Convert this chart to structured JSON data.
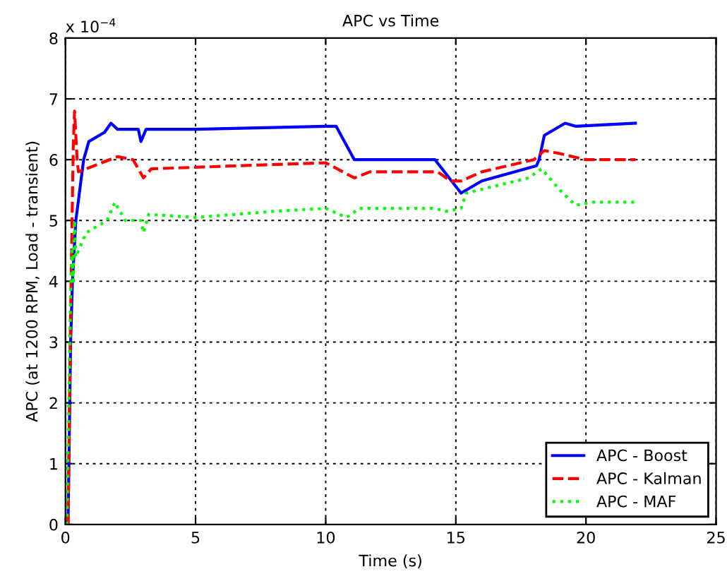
{
  "chart_data": {
    "type": "line",
    "title": "APC vs Time",
    "xlabel": "Time (s)",
    "ylabel": "APC (at 1200 RPM, Load - transient)",
    "annotations": [
      "x 10$^{−4}$"
    ],
    "xlim": [
      0,
      25
    ],
    "ylim": [
      0,
      8
    ],
    "xticks": [
      0,
      5,
      10,
      15,
      20,
      25
    ],
    "yticks": [
      0,
      1,
      2,
      3,
      4,
      5,
      6,
      7,
      8
    ],
    "grid": true,
    "legend": "bottom right",
    "series": [
      {
        "name": "APC - Boost",
        "color": "#0000ff",
        "line_style": "solid",
        "x": [
          0.1,
          0.2,
          0.27,
          0.4,
          0.7,
          0.9,
          1.5,
          1.75,
          2.0,
          2.8,
          2.9,
          3.1,
          5,
          10,
          10.4,
          11.1,
          14.2,
          15.2,
          16,
          18.1,
          18.2,
          18.4,
          19.2,
          19.6,
          21.9
        ],
        "values": [
          0,
          3.0,
          4.0,
          5.0,
          6.0,
          6.3,
          6.45,
          6.6,
          6.5,
          6.5,
          6.3,
          6.5,
          6.5,
          6.55,
          6.55,
          6.0,
          6.0,
          5.45,
          5.65,
          5.9,
          6.0,
          6.4,
          6.6,
          6.55,
          6.6
        ]
      },
      {
        "name": "APC - Kalman",
        "color": "#ff0000",
        "line_style": "dashed",
        "x": [
          0.1,
          0.2,
          0.3,
          0.35,
          0.45,
          0.5,
          2.0,
          2.6,
          3.0,
          3.3,
          10,
          11.1,
          11.7,
          14.3,
          14.8,
          15.2,
          16,
          18.0,
          18.4,
          19,
          20,
          21.9
        ],
        "values": [
          0,
          3.5,
          6.2,
          6.8,
          6.0,
          5.8,
          6.05,
          6.0,
          5.7,
          5.85,
          5.95,
          5.7,
          5.8,
          5.8,
          5.65,
          5.65,
          5.8,
          6.0,
          6.15,
          6.1,
          6.0,
          6.0
        ]
      },
      {
        "name": "APC - MAF",
        "color": "#00ff00",
        "line_style": "dotted",
        "x": [
          0.05,
          0.15,
          0.2,
          0.25,
          0.3,
          0.35,
          0.4,
          0.8,
          1.6,
          1.9,
          2.3,
          2.9,
          3.0,
          3.2,
          5,
          8,
          10,
          10.8,
          11.3,
          14.2,
          14.6,
          15.2,
          15.4,
          17.8,
          18.3,
          19.0,
          19.6,
          20.2,
          21.9
        ],
        "values": [
          0,
          2.5,
          3.8,
          4.5,
          4.0,
          5.0,
          4.4,
          4.8,
          5.0,
          5.3,
          5.0,
          5.0,
          4.8,
          5.1,
          5.05,
          5.15,
          5.2,
          5.05,
          5.2,
          5.2,
          5.15,
          5.2,
          5.45,
          5.7,
          5.85,
          5.5,
          5.25,
          5.3,
          5.3
        ]
      }
    ]
  }
}
